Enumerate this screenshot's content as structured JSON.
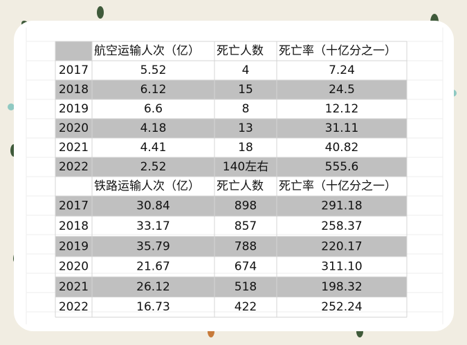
{
  "tables": [
    {
      "header": [
        "航空运输人次（亿）",
        "死亡人数",
        "死亡率（十亿分之一）"
      ],
      "rows": [
        [
          "2017",
          "5.52",
          "4",
          "7.24"
        ],
        [
          "2018",
          "6.12",
          "15",
          "24.5"
        ],
        [
          "2019",
          "6.6",
          "8",
          "12.12"
        ],
        [
          "2020",
          "4.18",
          "13",
          "31.11"
        ],
        [
          "2021",
          "4.41",
          "18",
          "40.82"
        ],
        [
          "2022",
          "2.52",
          "140左右",
          "555.6"
        ]
      ]
    },
    {
      "header": [
        "铁路运输人次（亿）",
        "死亡人数",
        "死亡率（十亿分之一）"
      ],
      "rows": [
        [
          "2017",
          "30.84",
          "898",
          "291.18"
        ],
        [
          "2018",
          "33.17",
          "857",
          "258.37"
        ],
        [
          "2019",
          "35.79",
          "788",
          "220.17"
        ],
        [
          "2020",
          "21.67",
          "674",
          "311.10"
        ],
        [
          "2021",
          "26.12",
          "518",
          "198.32"
        ],
        [
          "2022",
          "16.73",
          "422",
          "252.24"
        ]
      ]
    }
  ]
}
